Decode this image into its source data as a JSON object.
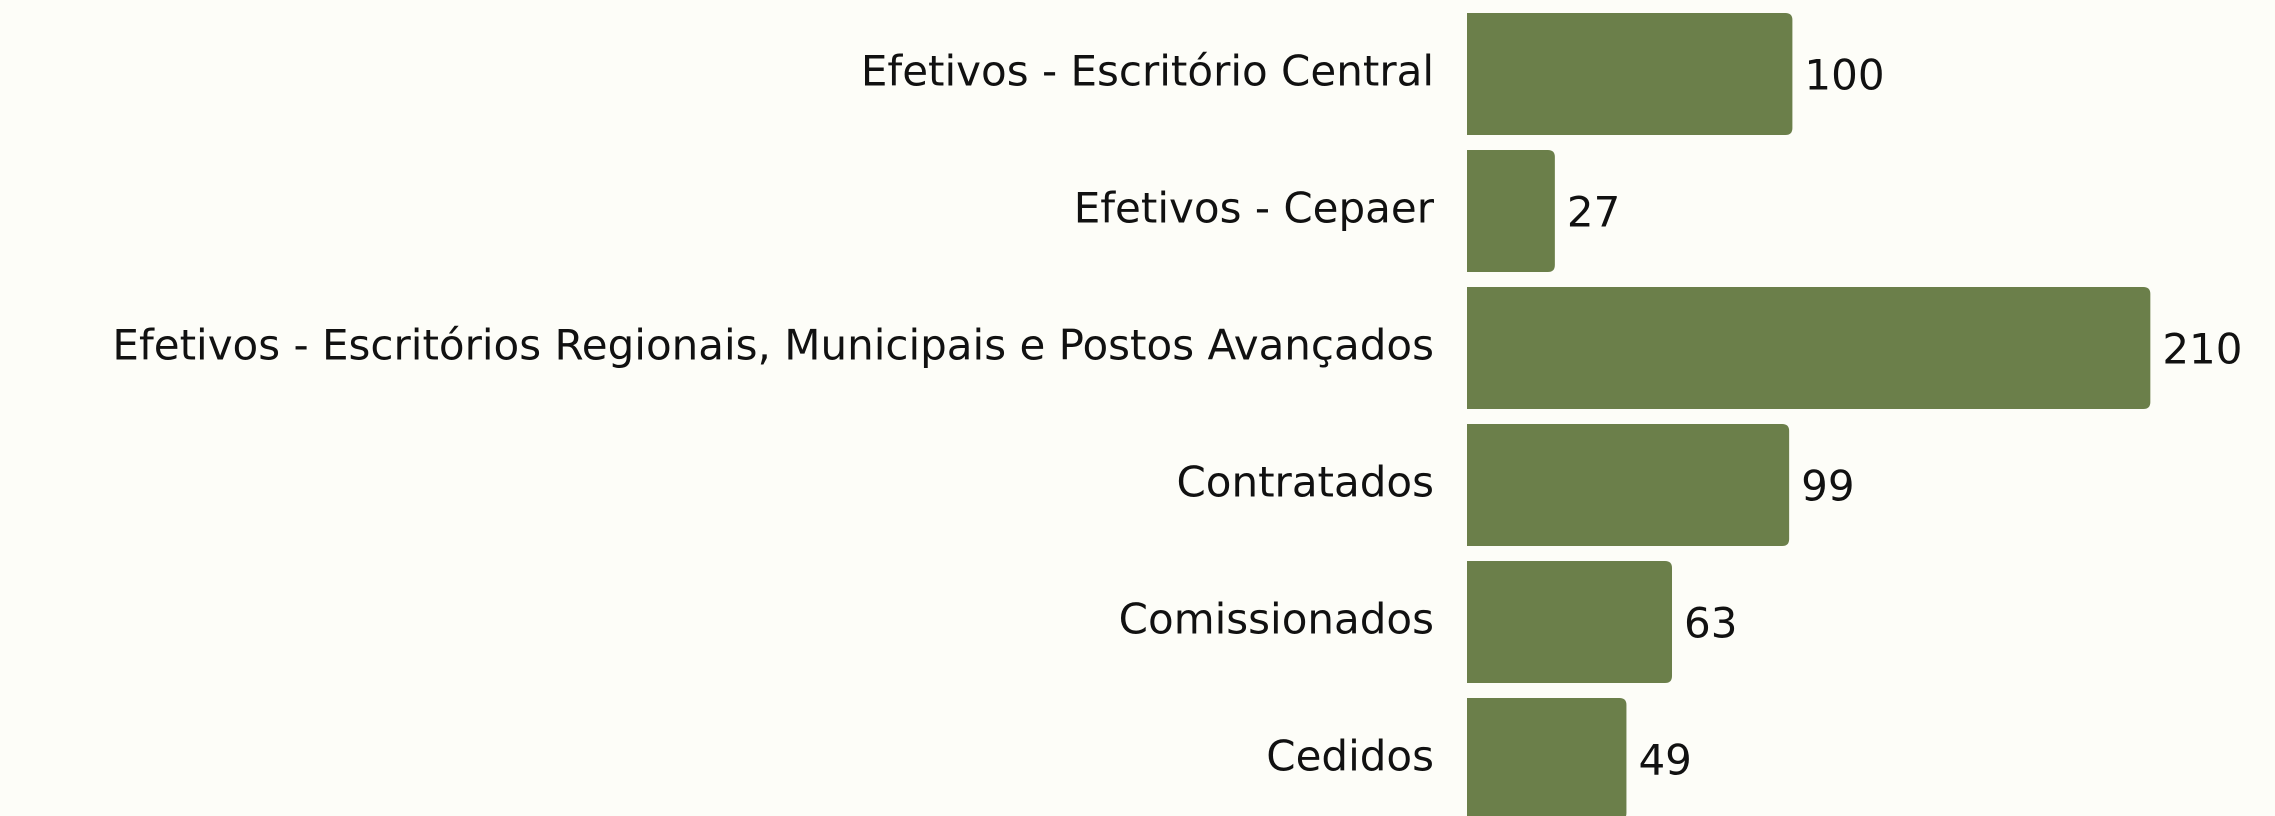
{
  "chart_data": {
    "type": "bar",
    "orientation": "horizontal",
    "categories": [
      "Efetivos - Escritório Central",
      "Efetivos - Cepaer",
      "Efetivos - Escritórios Regionais, Municipais e Postos Avançados",
      "Contratados",
      "Comissionados",
      "Cedidos"
    ],
    "values": [
      100,
      27,
      210,
      99,
      63,
      49
    ],
    "color": "#6b7f4a"
  }
}
